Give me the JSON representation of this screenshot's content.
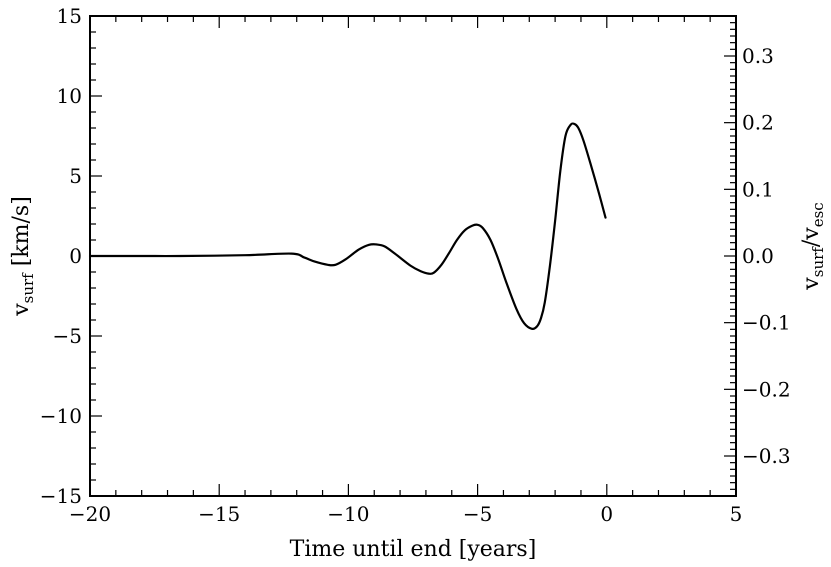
{
  "chart_data": {
    "type": "line",
    "title": "",
    "xlabel": "Time until end [years]",
    "ylabel": {
      "main": "v",
      "sub": "surf",
      "unit": " [km/s]"
    },
    "y2label": {
      "v1": "v",
      "sub1": "surf",
      "slash": "/",
      "v2": "v",
      "sub2": "esc"
    },
    "xlim": [
      -20,
      5
    ],
    "ylim": [
      -15,
      15
    ],
    "y2lim": [
      -0.36,
      0.36
    ],
    "x_ticks": [
      -20,
      -15,
      -10,
      -5,
      0,
      5
    ],
    "x_tick_labels": [
      "−20",
      "−15",
      "−10",
      "−5",
      "0",
      "5"
    ],
    "y_ticks": [
      -15,
      -10,
      -5,
      0,
      5,
      10,
      15
    ],
    "y_tick_labels": [
      "−15",
      "−10",
      "−5",
      "0",
      "5",
      "10",
      "15"
    ],
    "y2_ticks": [
      -0.3,
      -0.2,
      -0.1,
      0.0,
      0.1,
      0.2,
      0.3
    ],
    "y2_tick_labels": [
      "−0.3",
      "−0.2",
      "−0.1",
      "0.0",
      "0.1",
      "0.2",
      "0.3"
    ],
    "grid": false,
    "legend": "none",
    "series": [
      {
        "color": "#000000",
        "x": [
          -20,
          -18,
          -16.5,
          -14,
          -12.2,
          -11.7,
          -11.3,
          -10.8,
          -10.5,
          -10.1,
          -9.6,
          -9.2,
          -8.9,
          -8.6,
          -8.2,
          -7.6,
          -7.2,
          -6.9,
          -6.7,
          -6.4,
          -6.1,
          -5.8,
          -5.5,
          -5.2,
          -5.0,
          -4.8,
          -4.5,
          -4.2,
          -3.9,
          -3.5,
          -3.2,
          -2.9,
          -2.7,
          -2.55,
          -2.4,
          -2.2,
          -2.0,
          -1.8,
          -1.6,
          -1.4,
          -1.25,
          -1.1,
          -0.9,
          -0.6,
          -0.3,
          -0.05
        ],
        "y": [
          0.0,
          0.0,
          0.0,
          0.05,
          0.15,
          -0.1,
          -0.35,
          -0.55,
          -0.55,
          -0.2,
          0.4,
          0.7,
          0.72,
          0.6,
          0.15,
          -0.6,
          -0.95,
          -1.1,
          -1.05,
          -0.55,
          0.2,
          1.0,
          1.6,
          1.9,
          1.95,
          1.75,
          1.0,
          -0.2,
          -1.6,
          -3.3,
          -4.2,
          -4.55,
          -4.4,
          -3.9,
          -2.9,
          -0.6,
          2.2,
          5.3,
          7.5,
          8.2,
          8.25,
          8.0,
          7.2,
          5.6,
          3.9,
          2.4
        ]
      }
    ]
  }
}
